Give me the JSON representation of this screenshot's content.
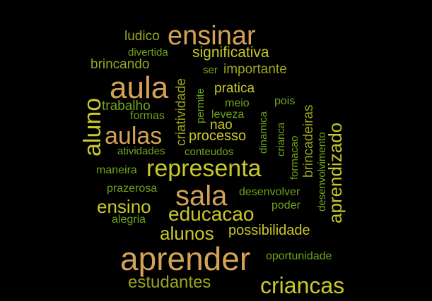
{
  "background": "#000000",
  "palette": {
    "gold": "#d4a256",
    "yellow": "#c8c82a",
    "green": "#6fa31c",
    "olive": "#9aa51e"
  },
  "words": [
    {
      "text": "aprender",
      "size": 46,
      "color": "#d4a256",
      "vertical": false
    },
    {
      "text": "aula",
      "size": 44,
      "color": "#d4a256",
      "vertical": false
    },
    {
      "text": "sala",
      "size": 40,
      "color": "#d4a256",
      "vertical": false
    },
    {
      "text": "ensinar",
      "size": 38,
      "color": "#d4a256",
      "vertical": false
    },
    {
      "text": "representa",
      "size": 34,
      "color": "#c8c82a",
      "vertical": false
    },
    {
      "text": "aulas",
      "size": 34,
      "color": "#d4a256",
      "vertical": false
    },
    {
      "text": "aluno",
      "size": 34,
      "color": "#c8c82a",
      "vertical": true
    },
    {
      "text": "criancas",
      "size": 32,
      "color": "#c8c82a",
      "vertical": false
    },
    {
      "text": "educacao",
      "size": 28,
      "color": "#c8c82a",
      "vertical": false
    },
    {
      "text": "ensino",
      "size": 26,
      "color": "#c8c82a",
      "vertical": false
    },
    {
      "text": "alunos",
      "size": 26,
      "color": "#c8c82a",
      "vertical": false
    },
    {
      "text": "aprendizado",
      "size": 26,
      "color": "#c8c82a",
      "vertical": true
    },
    {
      "text": "estudantes",
      "size": 24,
      "color": "#9aa51e",
      "vertical": false
    },
    {
      "text": "significativa",
      "size": 21,
      "color": "#c8c82a",
      "vertical": false
    },
    {
      "text": "processo",
      "size": 20,
      "color": "#c8c82a",
      "vertical": false
    },
    {
      "text": "possibilidade",
      "size": 20,
      "color": "#c8c82a",
      "vertical": false
    },
    {
      "text": "brincando",
      "size": 19,
      "color": "#9aa51e",
      "vertical": false
    },
    {
      "text": "importante",
      "size": 19,
      "color": "#9aa51e",
      "vertical": false
    },
    {
      "text": "pratica",
      "size": 19,
      "color": "#c8c82a",
      "vertical": false
    },
    {
      "text": "ludico",
      "size": 19,
      "color": "#9aa51e",
      "vertical": false
    },
    {
      "text": "trabalho",
      "size": 19,
      "color": "#6fa31c",
      "vertical": false
    },
    {
      "text": "nao",
      "size": 19,
      "color": "#c8c82a",
      "vertical": false
    },
    {
      "text": "brincadeiras",
      "size": 19,
      "color": "#9aa51e",
      "vertical": true
    },
    {
      "text": "criatividade",
      "size": 19,
      "color": "#9aa51e",
      "vertical": true
    },
    {
      "text": "pois",
      "size": 16,
      "color": "#6fa31c",
      "vertical": false
    },
    {
      "text": "meio",
      "size": 16,
      "color": "#6fa31c",
      "vertical": false
    },
    {
      "text": "leveza",
      "size": 16,
      "color": "#6fa31c",
      "vertical": false
    },
    {
      "text": "desenvolver",
      "size": 16,
      "color": "#6fa31c",
      "vertical": false
    },
    {
      "text": "poder",
      "size": 16,
      "color": "#6fa31c",
      "vertical": false
    },
    {
      "text": "maneira",
      "size": 16,
      "color": "#6fa31c",
      "vertical": false
    },
    {
      "text": "prazerosa",
      "size": 16,
      "color": "#6fa31c",
      "vertical": false
    },
    {
      "text": "alegria",
      "size": 16,
      "color": "#6fa31c",
      "vertical": false
    },
    {
      "text": "oportunidade",
      "size": 16,
      "color": "#6fa31c",
      "vertical": false
    },
    {
      "text": "formas",
      "size": 16,
      "color": "#6fa31c",
      "vertical": false
    },
    {
      "text": "atividades",
      "size": 15,
      "color": "#6fa31c",
      "vertical": false
    },
    {
      "text": "conteudos",
      "size": 15,
      "color": "#6fa31c",
      "vertical": false
    },
    {
      "text": "divertida",
      "size": 15,
      "color": "#6fa31c",
      "vertical": false
    },
    {
      "text": "ser",
      "size": 15,
      "color": "#6fa31c",
      "vertical": false
    },
    {
      "text": "permite",
      "size": 15,
      "color": "#6fa31c",
      "vertical": true
    },
    {
      "text": "dinamica",
      "size": 15,
      "color": "#6fa31c",
      "vertical": true
    },
    {
      "text": "crianca",
      "size": 15,
      "color": "#6fa31c",
      "vertical": true
    },
    {
      "text": "formacao",
      "size": 15,
      "color": "#6fa31c",
      "vertical": true
    },
    {
      "text": "desenvolvimento",
      "size": 15,
      "color": "#6fa31c",
      "vertical": true
    }
  ]
}
